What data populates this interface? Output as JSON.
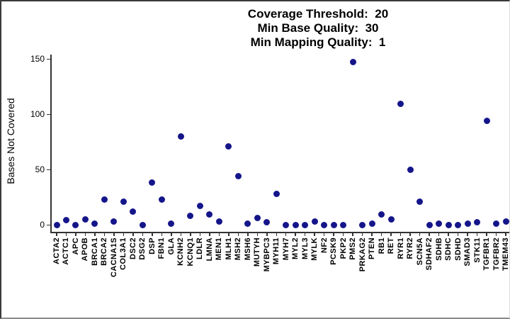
{
  "title": {
    "line1": "Coverage Threshold:  20",
    "line2": "Min Base Quality:  30",
    "line3": "Min Mapping Quality:  1"
  },
  "chart_data": {
    "type": "scatter",
    "title": "Coverage Threshold: 20; Min Base Quality: 30; Min Mapping Quality: 1",
    "xlabel": "",
    "ylabel": "Bases Not Covered",
    "ylim": [
      0,
      150
    ],
    "yticks": [
      0,
      50,
      100,
      150
    ],
    "grid": false,
    "legend": false,
    "point_color": "#15158a",
    "axis_color": "#333333",
    "categories": [
      "ACTA2",
      "ACTC1",
      "APC",
      "APOB",
      "BRCA1",
      "BRCA2",
      "CACNA1S",
      "COL3A1",
      "DSC2",
      "DSG2",
      "DSP",
      "FBN1",
      "GLA",
      "KCNH2",
      "KCNQ1",
      "LDLR",
      "LMNA",
      "MEN1",
      "MLH1",
      "MSH2",
      "MSH6",
      "MUTYH",
      "MYBPC3",
      "MYH11",
      "MYH7",
      "MYL2",
      "MYL3",
      "MYLK",
      "NF2",
      "PCSK9",
      "PKP2",
      "PMS2",
      "PRKAG2",
      "PTEN",
      "RB1",
      "RET",
      "RYR1",
      "RYR2",
      "SCN5A",
      "SDHAF2",
      "SDHB",
      "SDHC",
      "SDHD",
      "SMAD3",
      "STK11",
      "TGFBR1",
      "TGFBR2",
      "TMEM43"
    ],
    "values": [
      0,
      4,
      0,
      5,
      1,
      23,
      3,
      21,
      12,
      0,
      38,
      23,
      1,
      80,
      8,
      17,
      9,
      3,
      71,
      44,
      1,
      6,
      2,
      28,
      0,
      0,
      0,
      3,
      0,
      0,
      0,
      147,
      0,
      1,
      9,
      5,
      109,
      50,
      21,
      0,
      1,
      0,
      0,
      1,
      2,
      94,
      1,
      3
    ]
  }
}
